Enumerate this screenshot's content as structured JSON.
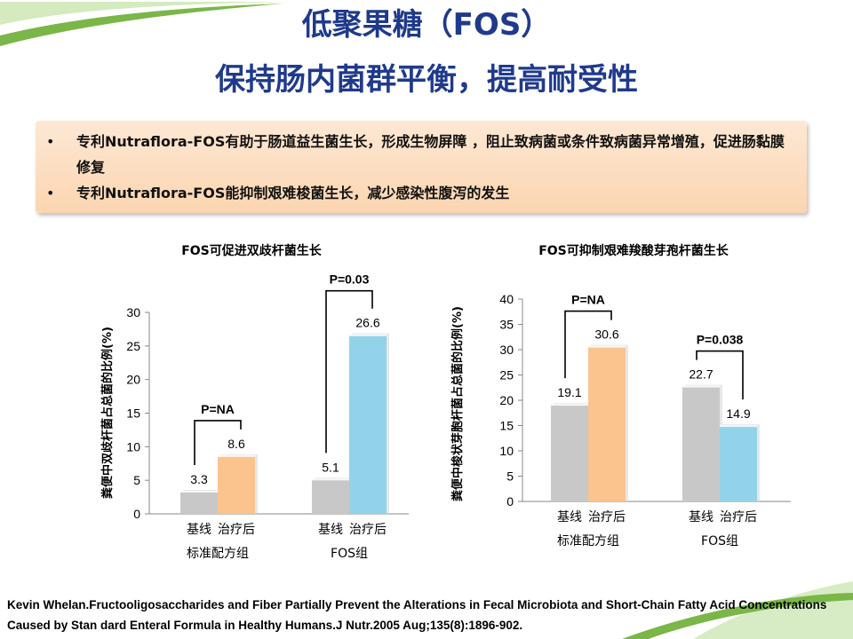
{
  "slide": {
    "title_line1": "低聚果糖（FOS）",
    "title_line2": "保持肠内菌群平衡，提高耐受性"
  },
  "bullets": [
    "专利Nutraflora-FOS有助于肠道益生菌生长，形成生物屏障 ，阻止致病菌或条件致病菌异常增殖，促进肠黏膜修复",
    "专利Nutraflora-FOS能抑制艰难梭菌生长，减少感染性腹泻的发生"
  ],
  "citation": "Kevin Whelan.Fructooligosaccharides and Fiber Partially Prevent the Alterations in Fecal Microbiota and Short-Chain Fatty Acid Concentrations Caused by Stan dard Enteral Formula in Healthy Humans.J Nutr.2005 Aug;135(8):1896-902.",
  "colors": {
    "title": "#1f3a8c",
    "baseline_bar": "#c8c8c8",
    "standard_treated_bar": "#fbc48e",
    "fos_treated_bar": "#92d3ea",
    "deco_green": "#7ab648"
  },
  "chart_data": [
    {
      "type": "bar",
      "title": "FOS可促进双歧杆菌生长",
      "ylabel": "粪便中双歧杆菌占总菌的比例(%)",
      "ylim": [
        0,
        30
      ],
      "yticks": [
        0,
        5,
        10,
        15,
        20,
        25,
        30
      ],
      "groups": [
        {
          "name": "标准配方组",
          "bars": [
            {
              "label": "基线",
              "value": 3.3,
              "value_label": "3.3",
              "color": "#c8c8c8"
            },
            {
              "label": "治疗后",
              "value": 8.6,
              "value_label": "8.6",
              "color": "#fbc48e"
            }
          ],
          "p_value": "P=NA"
        },
        {
          "name": "FOS组",
          "bars": [
            {
              "label": "基线",
              "value": 5.1,
              "value_label": "5.1",
              "color": "#c8c8c8"
            },
            {
              "label": "治疗后",
              "value": 26.6,
              "value_label": "26.6",
              "color": "#92d3ea"
            }
          ],
          "p_value": "P=0.03"
        }
      ],
      "grid": false,
      "legend": "none"
    },
    {
      "type": "bar",
      "title": "FOS可抑制艰难羧酸芽孢杆菌生长",
      "ylabel": "粪便中梭状芽胞杆菌占总菌的比例(%)",
      "ylim": [
        0,
        40
      ],
      "yticks": [
        0,
        5,
        10,
        15,
        20,
        25,
        30,
        35,
        40
      ],
      "groups": [
        {
          "name": "标准配方组",
          "bars": [
            {
              "label": "基线",
              "value": 19.1,
              "value_label": "19.1",
              "color": "#c8c8c8"
            },
            {
              "label": "治疗后",
              "value": 30.6,
              "value_label": "30.6",
              "color": "#fbc48e"
            }
          ],
          "p_value": "P=NA"
        },
        {
          "name": "FOS组",
          "bars": [
            {
              "label": "基线",
              "value": 22.7,
              "value_label": "22.7",
              "color": "#c8c8c8"
            },
            {
              "label": "治疗后",
              "value": 14.9,
              "value_label": "14.9",
              "color": "#92d3ea"
            }
          ],
          "p_value": "P=0.038"
        }
      ],
      "grid": false,
      "legend": "none"
    }
  ]
}
